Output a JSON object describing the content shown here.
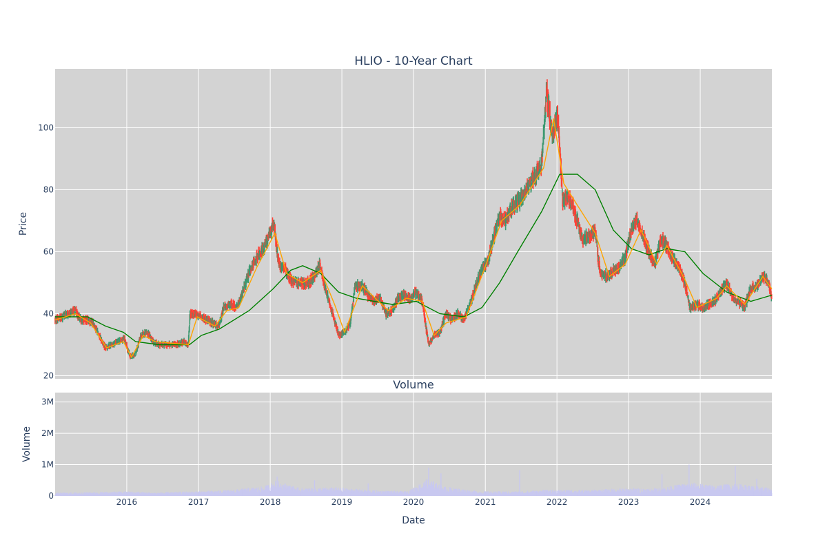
{
  "chart_data": [
    {
      "type": "candlestick",
      "title": "HLIO - 10-Year Chart",
      "ylabel": "Price",
      "xlabel": "",
      "ylim": [
        19,
        119
      ],
      "xlim": [
        "2015-01-01",
        "2024-12-31"
      ],
      "x_ticks": [
        "2016",
        "2017",
        "2018",
        "2019",
        "2020",
        "2021",
        "2022",
        "2023",
        "2024"
      ],
      "y_ticks": [
        20,
        40,
        60,
        80,
        100
      ],
      "grid": true,
      "legend": "none",
      "colors": {
        "increasing": "#3d9970",
        "decreasing": "#ff4136",
        "ma_short": "#ffa500",
        "ma_long": "#008000",
        "background": "#d3d3d3"
      },
      "price_path": [
        [
          "2015-01-01",
          38
        ],
        [
          "2015-02-01",
          39
        ],
        [
          "2015-03-15",
          40
        ],
        [
          "2015-04-15",
          41
        ],
        [
          "2015-05-15",
          38
        ],
        [
          "2015-06-15",
          38
        ],
        [
          "2015-07-15",
          37
        ],
        [
          "2015-08-15",
          33
        ],
        [
          "2015-09-15",
          29
        ],
        [
          "2015-10-15",
          30
        ],
        [
          "2015-11-15",
          31
        ],
        [
          "2015-12-20",
          32
        ],
        [
          "2016-01-20",
          26
        ],
        [
          "2016-02-15",
          27
        ],
        [
          "2016-03-15",
          33
        ],
        [
          "2016-04-15",
          34
        ],
        [
          "2016-05-15",
          31
        ],
        [
          "2016-06-15",
          30
        ],
        [
          "2016-07-15",
          30
        ],
        [
          "2016-08-15",
          30
        ],
        [
          "2016-09-15",
          30
        ],
        [
          "2016-10-15",
          31
        ],
        [
          "2016-11-10",
          30
        ],
        [
          "2016-11-20",
          40
        ],
        [
          "2016-12-15",
          40
        ],
        [
          "2017-01-15",
          39
        ],
        [
          "2017-02-15",
          38
        ],
        [
          "2017-03-15",
          37
        ],
        [
          "2017-04-15",
          36
        ],
        [
          "2017-05-10",
          42
        ],
        [
          "2017-06-15",
          43
        ],
        [
          "2017-07-15",
          42
        ],
        [
          "2017-08-15",
          47
        ],
        [
          "2017-09-15",
          53
        ],
        [
          "2017-10-15",
          57
        ],
        [
          "2017-11-15",
          60
        ],
        [
          "2017-12-15",
          63
        ],
        [
          "2018-01-20",
          69
        ],
        [
          "2018-02-15",
          56
        ],
        [
          "2018-03-15",
          55
        ],
        [
          "2018-04-15",
          51
        ],
        [
          "2018-05-15",
          50
        ],
        [
          "2018-06-15",
          50
        ],
        [
          "2018-07-15",
          50
        ],
        [
          "2018-08-15",
          52
        ],
        [
          "2018-09-10",
          56
        ],
        [
          "2018-10-15",
          47
        ],
        [
          "2018-11-15",
          40
        ],
        [
          "2018-12-20",
          33
        ],
        [
          "2019-01-15",
          34
        ],
        [
          "2019-02-15",
          37
        ],
        [
          "2019-03-10",
          49
        ],
        [
          "2019-04-15",
          49
        ],
        [
          "2019-05-15",
          46
        ],
        [
          "2019-06-15",
          44
        ],
        [
          "2019-07-15",
          45
        ],
        [
          "2019-08-15",
          40
        ],
        [
          "2019-09-15",
          41
        ],
        [
          "2019-10-15",
          45
        ],
        [
          "2019-11-15",
          46
        ],
        [
          "2019-12-15",
          45
        ],
        [
          "2020-01-15",
          47
        ],
        [
          "2020-02-15",
          44
        ],
        [
          "2020-03-20",
          30
        ],
        [
          "2020-04-15",
          33
        ],
        [
          "2020-05-15",
          34
        ],
        [
          "2020-06-15",
          40
        ],
        [
          "2020-07-15",
          38
        ],
        [
          "2020-08-15",
          40
        ],
        [
          "2020-09-15",
          38
        ],
        [
          "2020-10-15",
          43
        ],
        [
          "2020-11-15",
          49
        ],
        [
          "2020-12-20",
          55
        ],
        [
          "2021-01-15",
          57
        ],
        [
          "2021-02-15",
          65
        ],
        [
          "2021-03-15",
          72
        ],
        [
          "2021-04-15",
          70
        ],
        [
          "2021-05-15",
          74
        ],
        [
          "2021-06-15",
          76
        ],
        [
          "2021-07-15",
          78
        ],
        [
          "2021-08-15",
          82
        ],
        [
          "2021-09-15",
          85
        ],
        [
          "2021-10-15",
          88
        ],
        [
          "2021-11-10",
          112
        ],
        [
          "2021-12-10",
          97
        ],
        [
          "2022-01-05",
          105
        ],
        [
          "2022-02-01",
          76
        ],
        [
          "2022-02-20",
          78
        ],
        [
          "2022-03-15",
          76
        ],
        [
          "2022-04-15",
          70
        ],
        [
          "2022-05-15",
          64
        ],
        [
          "2022-06-15",
          65
        ],
        [
          "2022-07-15",
          67
        ],
        [
          "2022-08-10",
          53
        ],
        [
          "2022-09-15",
          52
        ],
        [
          "2022-10-15",
          54
        ],
        [
          "2022-11-15",
          55
        ],
        [
          "2022-12-15",
          58
        ],
        [
          "2023-01-15",
          67
        ],
        [
          "2023-02-15",
          70
        ],
        [
          "2023-03-15",
          65
        ],
        [
          "2023-04-15",
          60
        ],
        [
          "2023-05-15",
          56
        ],
        [
          "2023-06-15",
          64
        ],
        [
          "2023-07-15",
          62
        ],
        [
          "2023-08-15",
          58
        ],
        [
          "2023-09-15",
          55
        ],
        [
          "2023-10-15",
          50
        ],
        [
          "2023-11-10",
          42
        ],
        [
          "2023-12-15",
          43
        ],
        [
          "2024-01-15",
          42
        ],
        [
          "2024-02-15",
          43
        ],
        [
          "2024-03-15",
          44
        ],
        [
          "2024-04-15",
          47
        ],
        [
          "2024-05-15",
          50
        ],
        [
          "2024-06-15",
          45
        ],
        [
          "2024-07-15",
          44
        ],
        [
          "2024-08-15",
          42
        ],
        [
          "2024-09-15",
          48
        ],
        [
          "2024-10-15",
          49
        ],
        [
          "2024-11-15",
          52
        ],
        [
          "2024-12-15",
          50
        ],
        [
          "2024-12-31",
          45
        ]
      ],
      "ma_short": [
        [
          "2015-01-01",
          38
        ],
        [
          "2015-04-15",
          40
        ],
        [
          "2015-07-01",
          37
        ],
        [
          "2015-09-20",
          29
        ],
        [
          "2015-12-15",
          31
        ],
        [
          "2016-01-25",
          26
        ],
        [
          "2016-03-25",
          33
        ],
        [
          "2016-05-25",
          31
        ],
        [
          "2016-11-10",
          30
        ],
        [
          "2016-12-25",
          39
        ],
        [
          "2017-03-25",
          36
        ],
        [
          "2017-05-25",
          41
        ],
        [
          "2017-07-25",
          42
        ],
        [
          "2017-10-25",
          55
        ],
        [
          "2018-01-25",
          66
        ],
        [
          "2018-03-25",
          53
        ],
        [
          "2018-06-15",
          50
        ],
        [
          "2018-09-15",
          54
        ],
        [
          "2018-11-25",
          43
        ],
        [
          "2019-01-15",
          34
        ],
        [
          "2019-04-15",
          49
        ],
        [
          "2019-08-25",
          41
        ],
        [
          "2019-11-25",
          45
        ],
        [
          "2020-02-15",
          44
        ],
        [
          "2020-04-15",
          33
        ],
        [
          "2020-06-15",
          37
        ],
        [
          "2020-09-25",
          39
        ],
        [
          "2020-12-25",
          54
        ],
        [
          "2021-03-25",
          70
        ],
        [
          "2021-06-25",
          75
        ],
        [
          "2021-10-25",
          87
        ],
        [
          "2021-12-15",
          103
        ],
        [
          "2022-02-05",
          82
        ],
        [
          "2022-04-15",
          75
        ],
        [
          "2022-07-15",
          66
        ],
        [
          "2022-09-25",
          52
        ],
        [
          "2022-12-15",
          56
        ],
        [
          "2023-03-05",
          67
        ],
        [
          "2023-05-25",
          56
        ],
        [
          "2023-07-15",
          62
        ],
        [
          "2023-10-15",
          51
        ],
        [
          "2023-12-15",
          42
        ],
        [
          "2024-03-25",
          45
        ],
        [
          "2024-05-15",
          49
        ],
        [
          "2024-08-15",
          43
        ],
        [
          "2024-11-15",
          52
        ],
        [
          "2024-12-31",
          48
        ]
      ],
      "ma_long": [
        [
          "2015-01-01",
          39
        ],
        [
          "2015-06-15",
          39
        ],
        [
          "2015-09-15",
          36
        ],
        [
          "2015-12-15",
          34
        ],
        [
          "2016-02-15",
          31
        ],
        [
          "2016-06-15",
          30
        ],
        [
          "2016-11-15",
          30
        ],
        [
          "2017-01-15",
          33
        ],
        [
          "2017-04-15",
          35
        ],
        [
          "2017-09-15",
          41
        ],
        [
          "2018-01-15",
          48
        ],
        [
          "2018-04-15",
          54
        ],
        [
          "2018-06-15",
          55.5
        ],
        [
          "2018-09-15",
          53
        ],
        [
          "2018-12-15",
          47
        ],
        [
          "2019-03-15",
          45
        ],
        [
          "2019-06-15",
          44
        ],
        [
          "2019-09-15",
          43
        ],
        [
          "2020-01-15",
          44
        ],
        [
          "2020-05-15",
          40
        ],
        [
          "2020-09-15",
          39
        ],
        [
          "2020-12-15",
          42
        ],
        [
          "2021-03-15",
          50
        ],
        [
          "2021-06-15",
          60
        ],
        [
          "2021-10-15",
          73
        ],
        [
          "2022-01-15",
          85
        ],
        [
          "2022-04-15",
          85
        ],
        [
          "2022-07-15",
          80
        ],
        [
          "2022-10-15",
          67
        ],
        [
          "2023-01-15",
          61
        ],
        [
          "2023-04-15",
          59
        ],
        [
          "2023-07-15",
          61
        ],
        [
          "2023-10-15",
          60
        ],
        [
          "2024-01-15",
          53
        ],
        [
          "2024-05-15",
          47
        ],
        [
          "2024-09-15",
          44
        ],
        [
          "2024-12-31",
          46
        ]
      ]
    },
    {
      "type": "bar",
      "title": "Volume",
      "ylabel": "Volume",
      "xlabel": "Date",
      "ylim": [
        0,
        3.3
      ],
      "unit": "M",
      "y_ticks": [
        "0",
        "1M",
        "2M",
        "3M"
      ],
      "x_ticks": [
        "2016",
        "2017",
        "2018",
        "2019",
        "2020",
        "2021",
        "2022",
        "2023",
        "2024"
      ],
      "color": "#c8c8f0",
      "grid": true,
      "volume_profile": [
        [
          "2015-01-01",
          0.08
        ],
        [
          "2015-06-01",
          0.1
        ],
        [
          "2016-01-01",
          0.12
        ],
        [
          "2016-06-01",
          0.09
        ],
        [
          "2016-12-01",
          0.12
        ],
        [
          "2017-06-01",
          0.15
        ],
        [
          "2017-12-01",
          0.25
        ],
        [
          "2018-02-01",
          0.4
        ],
        [
          "2018-06-01",
          0.2
        ],
        [
          "2018-12-01",
          0.22
        ],
        [
          "2019-06-01",
          0.15
        ],
        [
          "2019-12-01",
          0.12
        ],
        [
          "2020-03-15",
          0.45
        ],
        [
          "2020-06-01",
          0.25
        ],
        [
          "2020-12-01",
          0.12
        ],
        [
          "2021-06-01",
          0.12
        ],
        [
          "2021-12-01",
          0.16
        ],
        [
          "2022-06-01",
          0.15
        ],
        [
          "2022-12-01",
          0.2
        ],
        [
          "2023-06-01",
          0.2
        ],
        [
          "2023-11-15",
          0.35
        ],
        [
          "2024-03-01",
          0.28
        ],
        [
          "2024-07-01",
          0.32
        ],
        [
          "2024-12-31",
          0.2
        ]
      ],
      "spikes": [
        [
          "2018-02-05",
          0.62
        ],
        [
          "2018-08-15",
          0.5
        ],
        [
          "2019-05-15",
          0.4
        ],
        [
          "2020-03-18",
          0.9
        ],
        [
          "2020-05-20",
          0.72
        ],
        [
          "2021-06-25",
          0.82
        ],
        [
          "2023-06-20",
          0.7
        ],
        [
          "2023-11-05",
          1.0
        ],
        [
          "2024-06-28",
          0.95
        ],
        [
          "2024-10-15",
          0.55
        ]
      ]
    }
  ]
}
